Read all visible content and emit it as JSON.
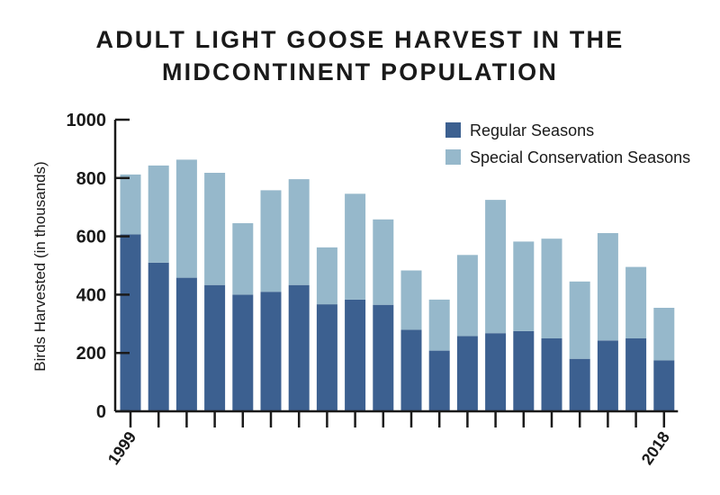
{
  "chart_data": {
    "type": "bar",
    "stacked": true,
    "title": [
      "ADULT LIGHT GOOSE HARVEST IN THE",
      "MIDCONTINENT POPULATION"
    ],
    "ylabel": "Birds Harvested (in thousands)",
    "xlabel": "",
    "ylim": [
      0,
      1000
    ],
    "yticks": [
      0,
      200,
      400,
      600,
      800,
      1000
    ],
    "x_tick_labels": {
      "first": "1999",
      "last": "2018"
    },
    "categories": [
      "1999",
      "2000",
      "2001",
      "2002",
      "2003",
      "2004",
      "2005",
      "2006",
      "2007",
      "2008",
      "2009",
      "2010",
      "2011",
      "2012",
      "2013",
      "2014",
      "2015",
      "2016",
      "2017",
      "2018"
    ],
    "series": [
      {
        "name": "Regular Seasons",
        "color": "#3c6090",
        "values": [
          607,
          510,
          458,
          433,
          400,
          410,
          433,
          367,
          383,
          365,
          280,
          208,
          258,
          268,
          275,
          250,
          180,
          243,
          250,
          175
        ]
      },
      {
        "name": "Special Conservation Seasons",
        "color": "#96b8cb",
        "values": [
          205,
          333,
          405,
          385,
          245,
          348,
          363,
          195,
          363,
          293,
          203,
          175,
          278,
          457,
          307,
          342,
          265,
          368,
          245,
          180
        ]
      }
    ],
    "legend_position": "top-right"
  }
}
